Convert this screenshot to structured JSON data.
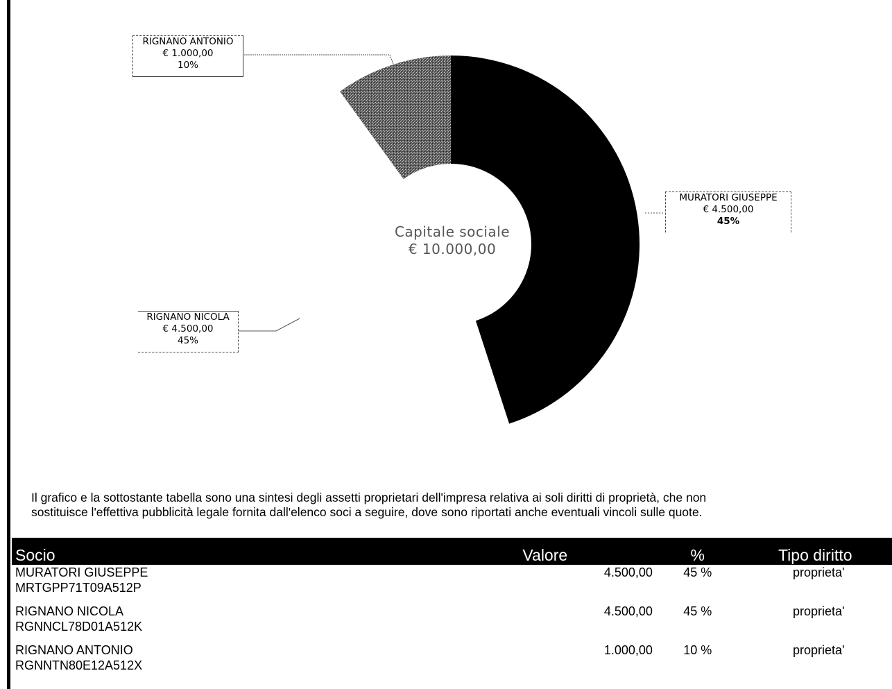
{
  "chart_data": {
    "type": "pie",
    "center_title": "Capitale sociale",
    "center_value": "€ 10.000,00",
    "slices": [
      {
        "name": "MURATORI GIUSEPPE",
        "amount": "€ 4.500,00",
        "percent_label": "45%",
        "value": 45,
        "color": "#000000"
      },
      {
        "name": "RIGNANO NICOLA",
        "amount": "€ 4.500,00",
        "percent_label": "45%",
        "value": 45,
        "color": "#ffffff"
      },
      {
        "name": "RIGNANO ANTONIO",
        "amount": "€ 1.000,00",
        "percent_label": "10%",
        "value": 10,
        "color": "#6e6e6e"
      }
    ]
  },
  "note": {
    "line1": "Il grafico e la sottostante tabella sono una sintesi degli assetti proprietari dell'impresa relativa ai soli diritti di proprietà, che non",
    "line2": "sostituisce l'effettiva pubblicità legale fornita dall'elenco soci a seguire, dove sono riportati anche eventuali vincoli sulle quote."
  },
  "table": {
    "headers": {
      "socio": "Socio",
      "valore": "Valore",
      "pct": "%",
      "tipo": "Tipo diritto"
    },
    "rows": [
      {
        "name": "MURATORI GIUSEPPE",
        "cf": "MRTGPP71T09A512P",
        "valore": "4.500,00",
        "pct": "45 %",
        "tipo": "proprieta'"
      },
      {
        "name": "RIGNANO NICOLA",
        "cf": "RGNNCL78D01A512K",
        "valore": "4.500,00",
        "pct": "45 %",
        "tipo": "proprieta'"
      },
      {
        "name": "RIGNANO ANTONIO",
        "cf": "RGNNTN80E12A512X",
        "valore": "1.000,00",
        "pct": "10 %",
        "tipo": "proprieta'"
      }
    ]
  }
}
